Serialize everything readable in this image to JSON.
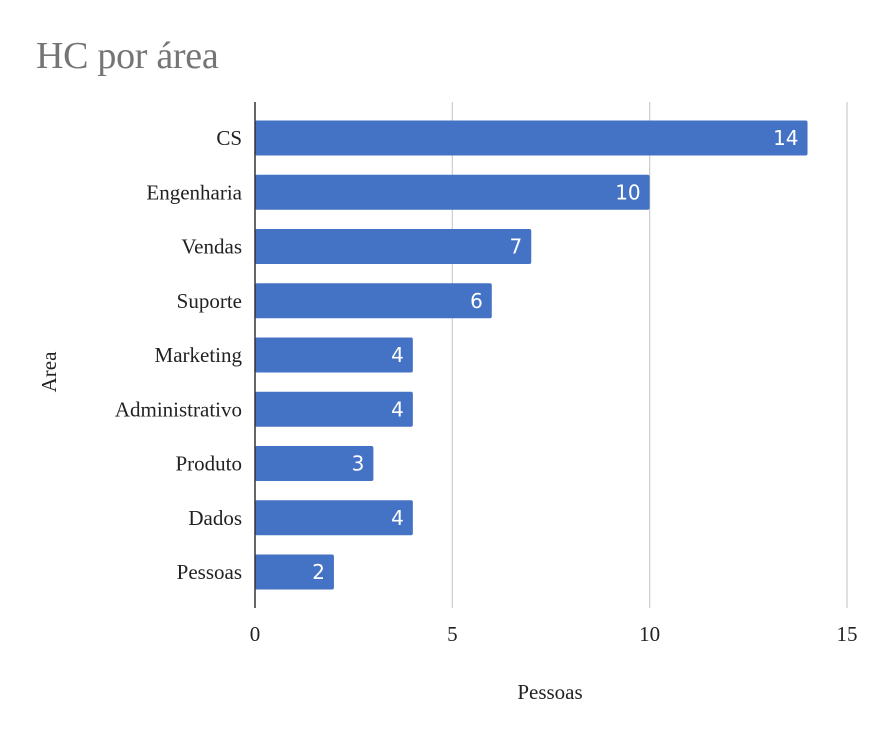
{
  "chart_data": {
    "type": "bar",
    "orientation": "horizontal",
    "title": "HC por área",
    "xlabel": "Pessoas",
    "ylabel": "Area",
    "categories": [
      "CS",
      "Engenharia",
      "Vendas",
      "Suporte",
      "Marketing",
      "Administrativo",
      "Produto",
      "Dados",
      "Pessoas"
    ],
    "values": [
      14,
      10,
      7,
      6,
      4,
      4,
      3,
      4,
      2
    ],
    "data_labels": [
      "14",
      "10",
      "7",
      "6",
      "4",
      "4",
      "3",
      "4",
      "2"
    ],
    "xlim": [
      0,
      15
    ],
    "x_ticks": [
      0,
      5,
      10,
      15
    ],
    "x_tick_labels": [
      "0",
      "5",
      "10",
      "15"
    ],
    "grid": "vertical",
    "legend": "none",
    "bar_color": "#4472c4",
    "grid_color": "#cccccc",
    "axis_color": "#333333",
    "title_color": "#757575"
  }
}
